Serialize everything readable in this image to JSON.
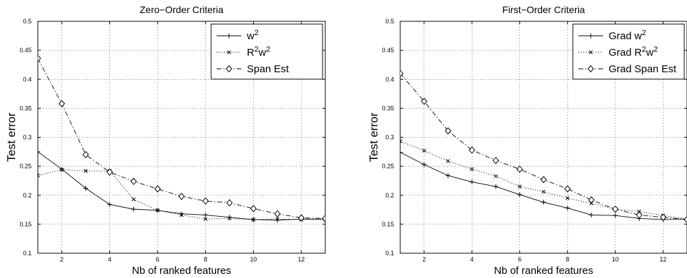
{
  "chart_data": [
    {
      "type": "line",
      "title": "Zero−Order Criteria",
      "xlabel": "Nb of ranked features",
      "ylabel": "Test error",
      "xlim": [
        1,
        13
      ],
      "ylim": [
        0.1,
        0.5
      ],
      "xticks": [
        2,
        4,
        6,
        8,
        10,
        12
      ],
      "yticks": [
        0.1,
        0.15,
        0.2,
        0.25,
        0.3,
        0.35,
        0.4,
        0.45,
        0.5
      ],
      "grid": true,
      "legend_position": "top-right",
      "x": [
        1,
        2,
        3,
        4,
        5,
        6,
        7,
        8,
        9,
        10,
        11,
        12,
        13
      ],
      "series": [
        {
          "name": "w",
          "sup": "2",
          "style": "solid",
          "marker": "plus",
          "values": [
            0.275,
            0.245,
            0.212,
            0.184,
            0.176,
            0.174,
            0.168,
            0.166,
            0.162,
            0.158,
            0.157,
            0.159,
            0.159
          ]
        },
        {
          "name": "R",
          "sup": "2",
          "name2": "w",
          "sup2": "2",
          "style": "dotted",
          "marker": "x",
          "values": [
            0.234,
            0.244,
            0.242,
            0.242,
            0.193,
            0.174,
            0.166,
            0.159,
            0.16,
            0.158,
            0.159,
            0.158,
            0.158
          ]
        },
        {
          "name": "Span Est",
          "style": "dashdot",
          "marker": "diamond",
          "values": [
            0.436,
            0.358,
            0.27,
            0.24,
            0.224,
            0.211,
            0.198,
            0.19,
            0.187,
            0.177,
            0.168,
            0.161,
            0.16
          ]
        }
      ]
    },
    {
      "type": "line",
      "title": "First−Order Criteria",
      "xlabel": "Nb of ranked features",
      "ylabel": "Test error",
      "xlim": [
        1,
        13
      ],
      "ylim": [
        0.1,
        0.5
      ],
      "xticks": [
        2,
        4,
        6,
        8,
        10,
        12
      ],
      "yticks": [
        0.1,
        0.15,
        0.2,
        0.25,
        0.3,
        0.35,
        0.4,
        0.45,
        0.5
      ],
      "grid": true,
      "legend_position": "top-right",
      "x": [
        1,
        2,
        3,
        4,
        5,
        6,
        7,
        8,
        9,
        10,
        11,
        12,
        13
      ],
      "series": [
        {
          "name": "Grad w",
          "sup": "2",
          "style": "solid",
          "marker": "plus",
          "values": [
            0.274,
            0.253,
            0.234,
            0.223,
            0.215,
            0.201,
            0.188,
            0.178,
            0.166,
            0.165,
            0.16,
            0.158,
            0.159
          ]
        },
        {
          "name": "Grad R",
          "sup": "2",
          "name2": "w",
          "sup2": "2",
          "style": "dotted",
          "marker": "x",
          "values": [
            0.293,
            0.277,
            0.259,
            0.245,
            0.233,
            0.215,
            0.206,
            0.195,
            0.186,
            0.176,
            0.172,
            0.165,
            0.159
          ]
        },
        {
          "name": "Grad Span Est",
          "style": "dashdot",
          "marker": "diamond",
          "values": [
            0.41,
            0.362,
            0.311,
            0.278,
            0.26,
            0.245,
            0.227,
            0.211,
            0.192,
            0.176,
            0.166,
            0.162,
            0.158
          ]
        }
      ]
    }
  ]
}
